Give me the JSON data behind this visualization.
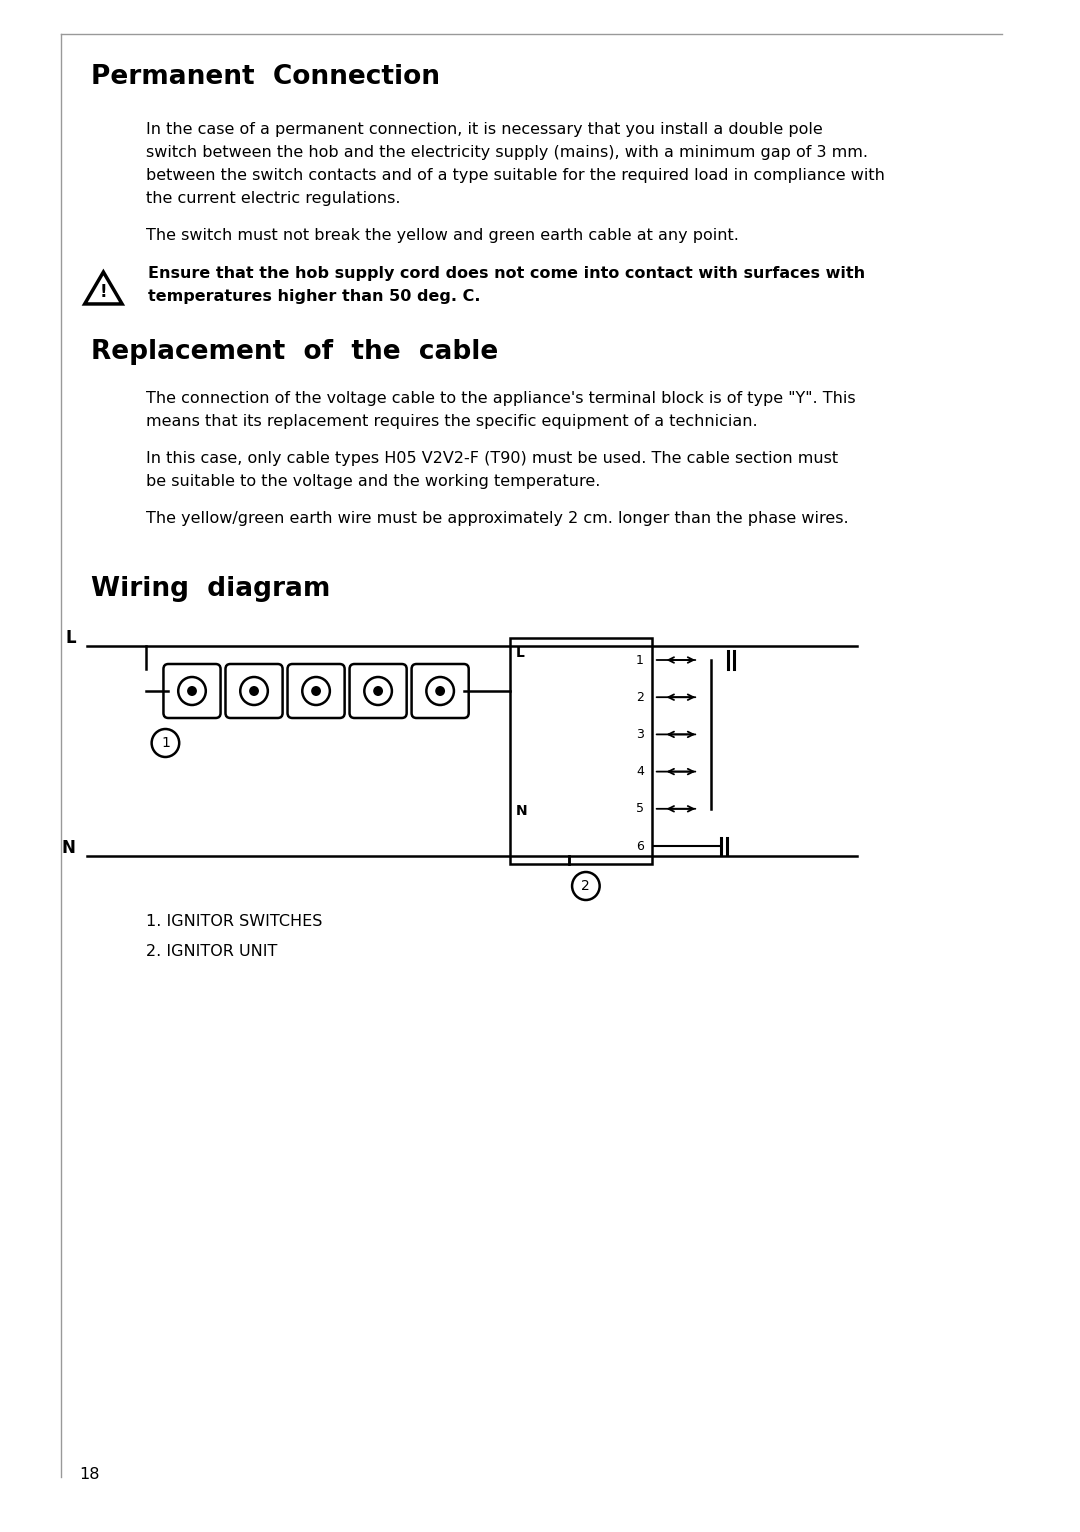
{
  "bg_color": "#ffffff",
  "title1": "Permanent  Connection",
  "para1_lines": [
    "In the case of a permanent connection, it is necessary that you install a double pole",
    "switch between the hob and the electricity supply (mains), with a minimum gap of 3 mm.",
    "between the switch contacts and of a type suitable for the required load in compliance with",
    "the current electric regulations."
  ],
  "para2": "The switch must not break the yellow and green earth cable at any point.",
  "warning_line1": "Ensure that the hob supply cord does not come into contact with surfaces with",
  "warning_line2": "temperatures higher than 50 deg. C.",
  "title2": "Replacement  of  the  cable",
  "para3_lines": [
    "The connection of the voltage cable to the appliance's terminal block is of type \"Y\". This",
    "means that its replacement requires the specific equipment of a technician."
  ],
  "para4_lines": [
    "In this case, only cable types H05 V2V2-F (T90) must be used. The cable section must",
    "be suitable to the voltage and the working temperature."
  ],
  "para5": "The yellow/green earth wire must be approximately 2 cm. longer than the phase wires.",
  "title3": "Wiring  diagram",
  "legend1": "1. IGNITOR SWITCHES",
  "legend2": "2. IGNITOR UNIT",
  "page_num": "18"
}
